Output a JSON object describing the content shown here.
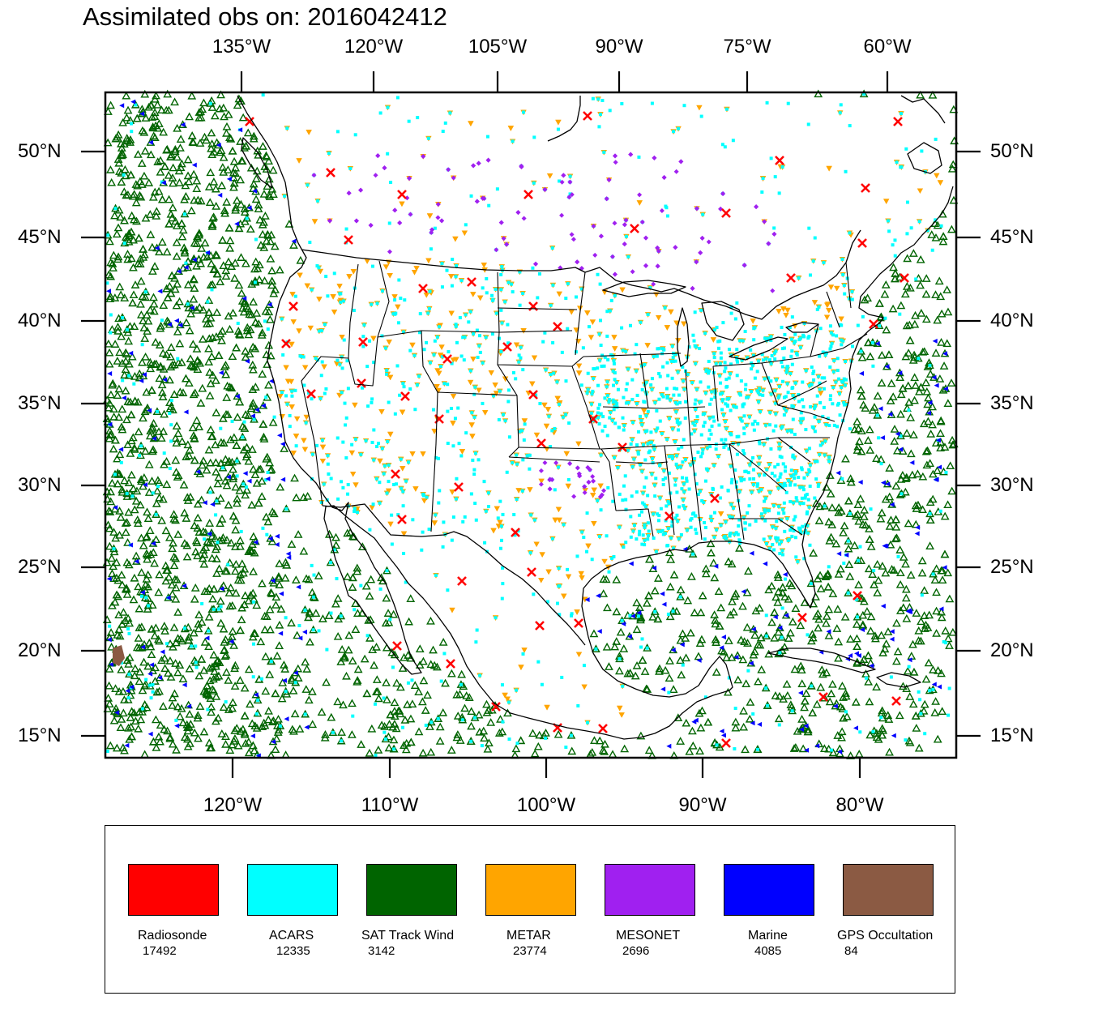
{
  "title": "Assimilated obs on: 2016042412",
  "top_lon_labels": [
    "135°W",
    "120°W",
    "105°W",
    "90°W",
    "75°W",
    "60°W"
  ],
  "bottom_lon_labels": [
    "120°W",
    "110°W",
    "100°W",
    "90°W",
    "80°W"
  ],
  "lat_labels": [
    "50°N",
    "45°N",
    "40°N",
    "35°N",
    "30°N",
    "25°N",
    "20°N",
    "15°N"
  ],
  "legend": [
    {
      "name": "Radiosonde",
      "count": "17492",
      "color": "#ff0000"
    },
    {
      "name": "ACARS",
      "count": "12335",
      "color": "#00ffff"
    },
    {
      "name": "SAT Track Wind",
      "count": "3142",
      "color": "#006400"
    },
    {
      "name": "METAR",
      "count": "23774",
      "color": "#ffa500"
    },
    {
      "name": "MESONET",
      "count": "2696",
      "color": "#a020f0"
    },
    {
      "name": "Marine",
      "count": "4085",
      "color": "#0000ff"
    },
    {
      "name": "GPS Occultation",
      "count": "84",
      "color": "#8b5a43"
    }
  ]
}
